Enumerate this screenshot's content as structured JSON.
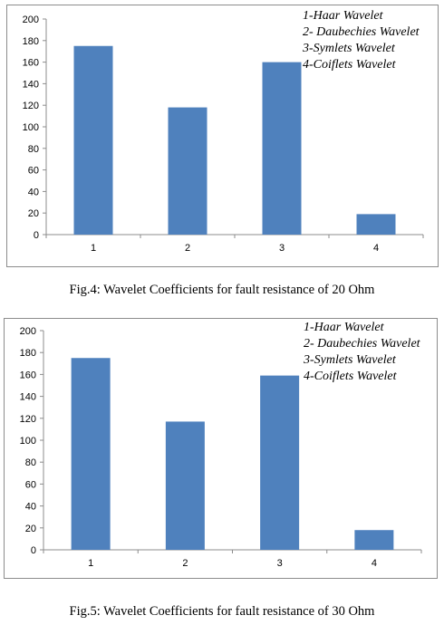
{
  "chart_data": [
    {
      "type": "bar",
      "title": "",
      "xlabel": "",
      "ylabel": "",
      "categories": [
        "1",
        "2",
        "3",
        "4"
      ],
      "values": [
        175,
        118,
        160,
        19
      ],
      "ylim": [
        0,
        200
      ],
      "yticks": [
        "0",
        "20",
        "40",
        "60",
        "80",
        "100",
        "120",
        "140",
        "160",
        "180",
        "200"
      ],
      "grid": false,
      "bar_color": "#4f81bd",
      "legend_placement": "top-right",
      "legend": [
        "1-Haar Wavelet",
        "2- Daubechies Wavelet",
        "3-Symlets Wavelet",
        "4-Coiflets Wavelet"
      ],
      "caption": "Fig.4: Wavelet Coefficients for fault resistance of 20 Ohm"
    },
    {
      "type": "bar",
      "title": "",
      "xlabel": "",
      "ylabel": "",
      "categories": [
        "1",
        "2",
        "3",
        "4"
      ],
      "values": [
        175,
        117,
        159,
        18
      ],
      "ylim": [
        0,
        200
      ],
      "yticks": [
        "0",
        "20",
        "40",
        "60",
        "80",
        "100",
        "120",
        "140",
        "160",
        "180",
        "200"
      ],
      "grid": false,
      "bar_color": "#4f81bd",
      "legend_placement": "top-right",
      "legend": [
        "1-Haar Wavelet",
        "2- Daubechies Wavelet",
        "3-Symlets Wavelet",
        "4-Coiflets Wavelet"
      ],
      "caption": "Fig.5: Wavelet Coefficients for fault resistance of 30 Ohm"
    }
  ]
}
